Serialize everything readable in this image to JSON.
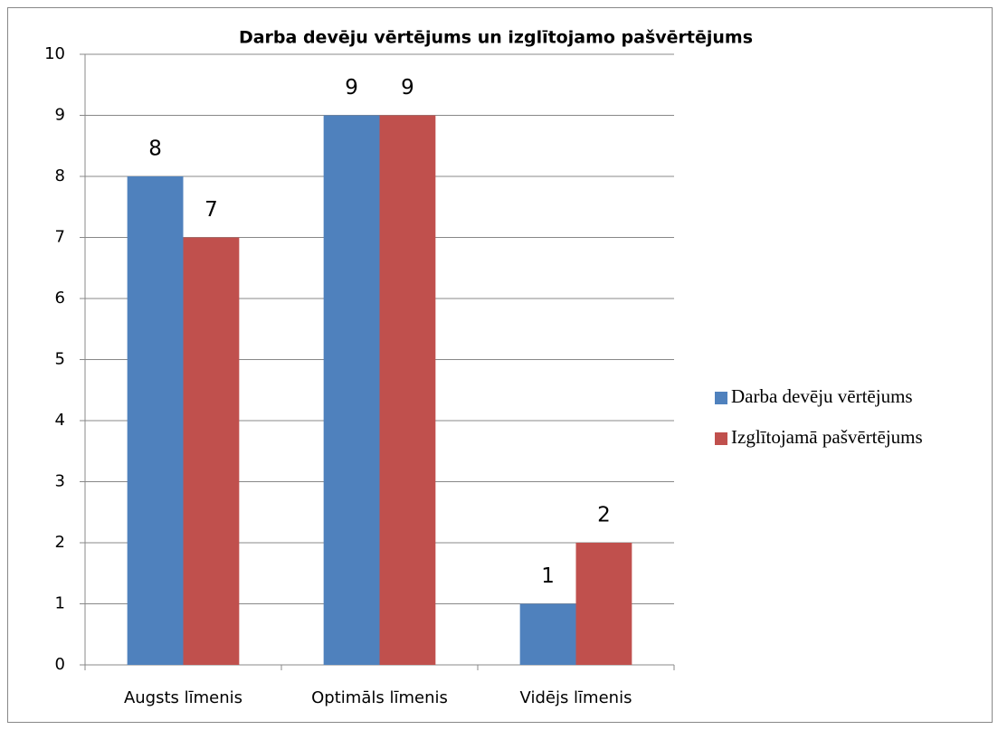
{
  "chart_data": {
    "type": "bar",
    "title": "Darba devēju vērtējums un izglītojamo pašvērtējums",
    "categories": [
      "Augsts līmenis",
      "Optimāls līmenis",
      "Vidējs līmenis"
    ],
    "series": [
      {
        "name": "Darba devēju vērtējums",
        "color": "#4f81bd",
        "values": [
          8,
          9,
          1
        ]
      },
      {
        "name": "Izglītojamā pašvērtējums",
        "color": "#c0504d",
        "values": [
          7,
          9,
          2
        ]
      }
    ],
    "ylim": [
      0,
      10
    ],
    "yticks": [
      0,
      1,
      2,
      3,
      4,
      5,
      6,
      7,
      8,
      9,
      10
    ],
    "grid": true,
    "legend": "right"
  }
}
